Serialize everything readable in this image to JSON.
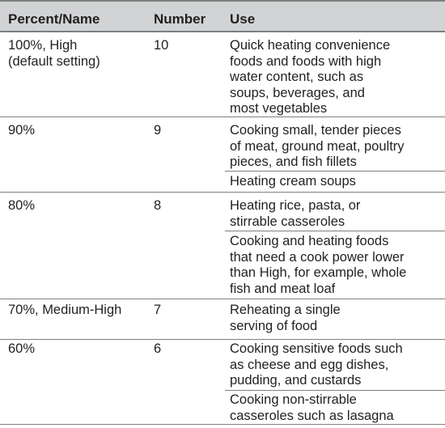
{
  "headers": {
    "name": "Percent/Name",
    "number": "Number",
    "use": "Use"
  },
  "rows": [
    {
      "name": "100%, High\n(default setting)",
      "number": "10",
      "uses": [
        "Quick heating convenience\nfoods and foods with high\nwater content, such as\nsoups, beverages, and\nmost vegetables"
      ]
    },
    {
      "name": "90%",
      "number": "9",
      "uses": [
        "Cooking small, tender pieces\nof meat, ground meat, poultry\npieces, and fish fillets",
        "Heating cream soups"
      ]
    },
    {
      "name": "80%",
      "number": "8",
      "uses": [
        "Heating rice, pasta, or\nstirrable casseroles",
        "Cooking and heating foods\nthat need a cook power lower\nthan High, for example, whole\nfish and meat loaf"
      ]
    },
    {
      "name": "70%, Medium-High",
      "number": "7",
      "uses": [
        "Reheating a single\nserving of food"
      ]
    },
    {
      "name": "60%",
      "number": "6",
      "uses": [
        "Cooking sensitive foods such\nas cheese and egg dishes,\npudding, and custards",
        "Cooking non-stirrable\ncasseroles such as lasagna"
      ]
    }
  ]
}
